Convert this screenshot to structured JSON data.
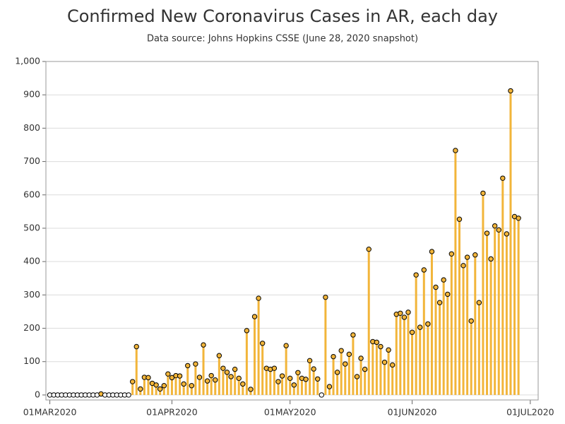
{
  "chart_data": {
    "type": "needle",
    "title": "Confirmed New Coronavirus Cases in AR, each day",
    "subtitle": "Data source: Johns Hopkins CSSE (June 28, 2020 snapshot)",
    "x": [
      "2020-03-01",
      "2020-03-02",
      "2020-03-03",
      "2020-03-04",
      "2020-03-05",
      "2020-03-06",
      "2020-03-07",
      "2020-03-08",
      "2020-03-09",
      "2020-03-10",
      "2020-03-11",
      "2020-03-12",
      "2020-03-13",
      "2020-03-14",
      "2020-03-15",
      "2020-03-16",
      "2020-03-17",
      "2020-03-18",
      "2020-03-19",
      "2020-03-20",
      "2020-03-21",
      "2020-03-22",
      "2020-03-23",
      "2020-03-24",
      "2020-03-25",
      "2020-03-26",
      "2020-03-27",
      "2020-03-28",
      "2020-03-29",
      "2020-03-30",
      "2020-03-31",
      "2020-04-01",
      "2020-04-02",
      "2020-04-03",
      "2020-04-04",
      "2020-04-05",
      "2020-04-06",
      "2020-04-07",
      "2020-04-08",
      "2020-04-09",
      "2020-04-10",
      "2020-04-11",
      "2020-04-12",
      "2020-04-13",
      "2020-04-14",
      "2020-04-15",
      "2020-04-16",
      "2020-04-17",
      "2020-04-18",
      "2020-04-19",
      "2020-04-20",
      "2020-04-21",
      "2020-04-22",
      "2020-04-23",
      "2020-04-24",
      "2020-04-25",
      "2020-04-26",
      "2020-04-27",
      "2020-04-28",
      "2020-04-29",
      "2020-04-30",
      "2020-05-01",
      "2020-05-02",
      "2020-05-03",
      "2020-05-04",
      "2020-05-05",
      "2020-05-06",
      "2020-05-07",
      "2020-05-08",
      "2020-05-09",
      "2020-05-10",
      "2020-05-11",
      "2020-05-12",
      "2020-05-13",
      "2020-05-14",
      "2020-05-15",
      "2020-05-16",
      "2020-05-17",
      "2020-05-18",
      "2020-05-19",
      "2020-05-20",
      "2020-05-21",
      "2020-05-22",
      "2020-05-23",
      "2020-05-24",
      "2020-05-25",
      "2020-05-26",
      "2020-05-27",
      "2020-05-28",
      "2020-05-29",
      "2020-05-30",
      "2020-05-31",
      "2020-06-01",
      "2020-06-02",
      "2020-06-03",
      "2020-06-04",
      "2020-06-05",
      "2020-06-06",
      "2020-06-07",
      "2020-06-08",
      "2020-06-09",
      "2020-06-10",
      "2020-06-11",
      "2020-06-12",
      "2020-06-13",
      "2020-06-14",
      "2020-06-15",
      "2020-06-16",
      "2020-06-17",
      "2020-06-18",
      "2020-06-19",
      "2020-06-20",
      "2020-06-21",
      "2020-06-22",
      "2020-06-23",
      "2020-06-24",
      "2020-06-25",
      "2020-06-26",
      "2020-06-27",
      "2020-06-28"
    ],
    "series": [
      {
        "color": "#f2b53a",
        "values": [
          0,
          0,
          0,
          0,
          0,
          0,
          0,
          0,
          0,
          0,
          0,
          0,
          0,
          3,
          0,
          0,
          0,
          0,
          0,
          0,
          0,
          40,
          145,
          18,
          53,
          52,
          35,
          30,
          18,
          28,
          63,
          52,
          58,
          57,
          33,
          88,
          28,
          93,
          53,
          150,
          42,
          58,
          45,
          118,
          80,
          68,
          55,
          77,
          50,
          33,
          193,
          17,
          235,
          290,
          155,
          80,
          77,
          80,
          40,
          57,
          148,
          50,
          30,
          67,
          50,
          47,
          103,
          78,
          48,
          0,
          293,
          25,
          115,
          68,
          133,
          93,
          122,
          180,
          55,
          110,
          77,
          437,
          160,
          158,
          145,
          98,
          135,
          90,
          242,
          245,
          233,
          248,
          188,
          360,
          203,
          375,
          213,
          430,
          323,
          277,
          345,
          302,
          423,
          733,
          527,
          388,
          413,
          222,
          420,
          277,
          605,
          485,
          408,
          507,
          495,
          650,
          483,
          912,
          535,
          530
        ]
      }
    ],
    "xlim": [
      "2020-02-29",
      "2020-07-03"
    ],
    "xticks": [
      {
        "value": "2020-03-01",
        "label": "01MAR2020"
      },
      {
        "value": "2020-04-01",
        "label": "01APR2020"
      },
      {
        "value": "2020-05-01",
        "label": "01MAY2020"
      },
      {
        "value": "2020-06-01",
        "label": "01JUN2020"
      },
      {
        "value": "2020-07-01",
        "label": "01JUL2020"
      }
    ],
    "ylim": [
      -15,
      1000
    ],
    "yticks": [
      0,
      100,
      200,
      300,
      400,
      500,
      600,
      700,
      800,
      900,
      {
        "value": 1000,
        "label": "1,000"
      }
    ],
    "grid": true
  }
}
